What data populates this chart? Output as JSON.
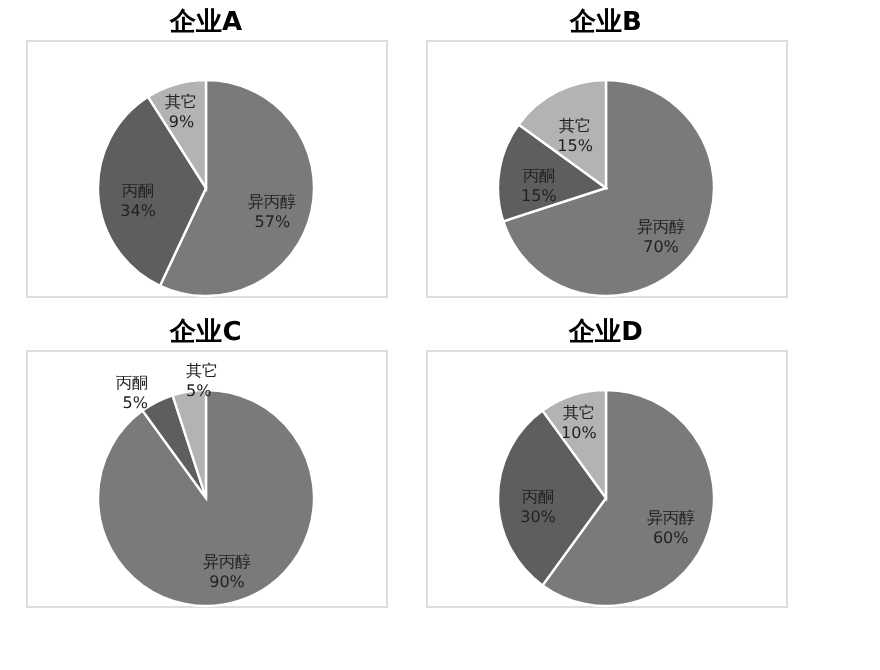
{
  "chart_data": [
    {
      "type": "pie",
      "title": "企业A",
      "categories": [
        "异丙醇",
        "丙酮",
        "其它"
      ],
      "values": [
        57,
        34,
        9
      ],
      "value_labels": [
        "57%",
        "34%",
        "9%"
      ],
      "colors": [
        "#7a7a7a",
        "#5e5e5e",
        "#b3b3b3"
      ],
      "legend": false
    },
    {
      "type": "pie",
      "title": "企业B",
      "categories": [
        "异丙醇",
        "丙酮",
        "其它"
      ],
      "values": [
        70,
        15,
        15
      ],
      "value_labels": [
        "70%",
        "15%",
        "15%"
      ],
      "colors": [
        "#7a7a7a",
        "#5e5e5e",
        "#b3b3b3"
      ],
      "legend": false
    },
    {
      "type": "pie",
      "title": "企业C",
      "categories": [
        "异丙醇",
        "丙酮",
        "其它"
      ],
      "values": [
        90,
        5,
        5
      ],
      "value_labels": [
        "90%",
        "5%",
        "5%"
      ],
      "colors": [
        "#7a7a7a",
        "#5e5e5e",
        "#b3b3b3"
      ],
      "legend": false
    },
    {
      "type": "pie",
      "title": "企业D",
      "categories": [
        "异丙醇",
        "丙酮",
        "其它"
      ],
      "values": [
        60,
        30,
        10
      ],
      "value_labels": [
        "60%",
        "30%",
        "10%"
      ],
      "colors": [
        "#7a7a7a",
        "#5e5e5e",
        "#b3b3b3"
      ],
      "legend": false
    }
  ]
}
